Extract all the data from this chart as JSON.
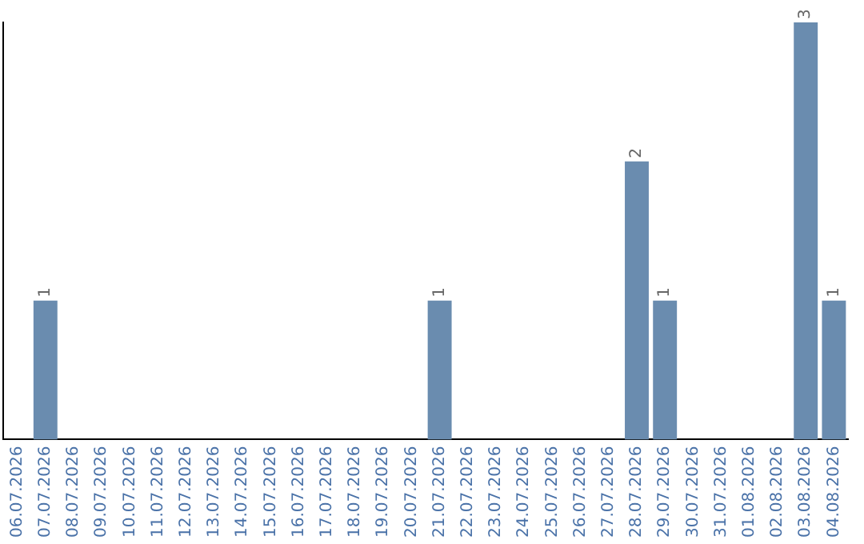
{
  "chart_data": {
    "type": "bar",
    "categories": [
      "06.07.2026",
      "07.07.2026",
      "08.07.2026",
      "09.07.2026",
      "10.07.2026",
      "11.07.2026",
      "12.07.2026",
      "13.07.2026",
      "14.07.2026",
      "15.07.2026",
      "16.07.2026",
      "17.07.2026",
      "18.07.2026",
      "19.07.2026",
      "20.07.2026",
      "21.07.2026",
      "22.07.2026",
      "23.07.2026",
      "24.07.2026",
      "25.07.2026",
      "26.07.2026",
      "27.07.2026",
      "28.07.2026",
      "29.07.2026",
      "30.07.2026",
      "31.07.2026",
      "01.08.2026",
      "02.08.2026",
      "03.08.2026",
      "04.08.2026"
    ],
    "values": [
      0,
      1,
      0,
      0,
      0,
      0,
      0,
      0,
      0,
      0,
      0,
      0,
      0,
      0,
      0,
      1,
      0,
      0,
      0,
      0,
      0,
      0,
      2,
      1,
      0,
      0,
      0,
      0,
      3,
      1
    ],
    "value_labels": [
      null,
      "1",
      null,
      null,
      null,
      null,
      null,
      null,
      null,
      null,
      null,
      null,
      null,
      null,
      null,
      "1",
      null,
      null,
      null,
      null,
      null,
      null,
      "2",
      "1",
      null,
      null,
      null,
      null,
      "3",
      "1"
    ],
    "color": "#6a8caf",
    "ylim": [
      0,
      3
    ],
    "tick_labels": "x",
    "grid": false,
    "legend": false
  }
}
